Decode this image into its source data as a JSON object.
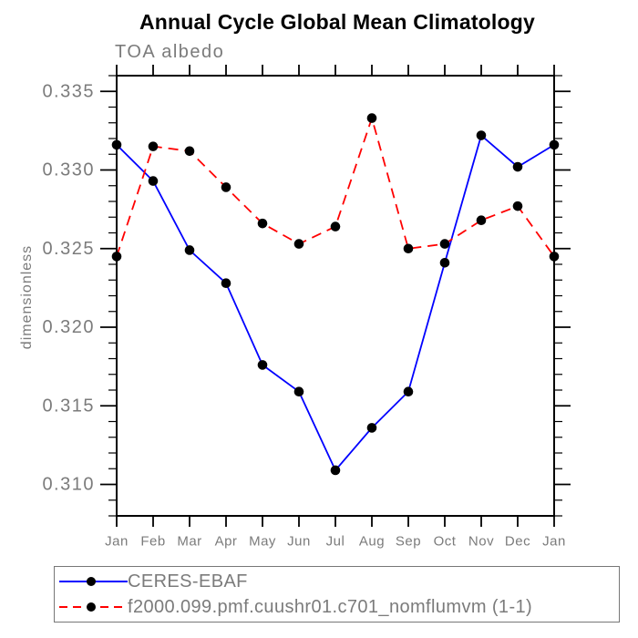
{
  "page": {
    "background": "#ffffff"
  },
  "chart_data": {
    "type": "line",
    "title": "Annual Cycle Global Mean Climatology",
    "subtitle": "TOA albedo",
    "ylabel": "dimensionless",
    "xlabel": "",
    "categories": [
      "Jan",
      "Feb",
      "Mar",
      "Apr",
      "May",
      "Jun",
      "Jul",
      "Aug",
      "Sep",
      "Oct",
      "Nov",
      "Dec",
      "Jan"
    ],
    "ylim": [
      0.308,
      0.336
    ],
    "y_major_tick_start": 0.31,
    "y_major_tick_step": 0.005,
    "y_minor_tick_step": 0.001,
    "grid": false,
    "legend_position": "bottom-left-box",
    "axis_color": "#000000",
    "label_color": "#7b7b7b",
    "marker_color": "#000000",
    "series": [
      {
        "name": "CERES-EBAF",
        "color": "#0000ff",
        "style": "solid",
        "marker": "filled-circle",
        "values": [
          0.3316,
          0.3293,
          0.3249,
          0.3228,
          0.3176,
          0.3159,
          0.3109,
          0.3136,
          0.3159,
          0.3241,
          0.3322,
          0.3302,
          0.3316
        ]
      },
      {
        "name": "f2000.099.pmf.cuushr01.c701_nomflumvm (1-1)",
        "color": "#ff0000",
        "style": "dashed",
        "marker": "filled-circle",
        "values": [
          0.3245,
          0.3315,
          0.3312,
          0.3289,
          0.3266,
          0.3253,
          0.3264,
          0.3333,
          0.325,
          0.3253,
          0.3268,
          0.3277,
          0.3245
        ]
      }
    ]
  }
}
